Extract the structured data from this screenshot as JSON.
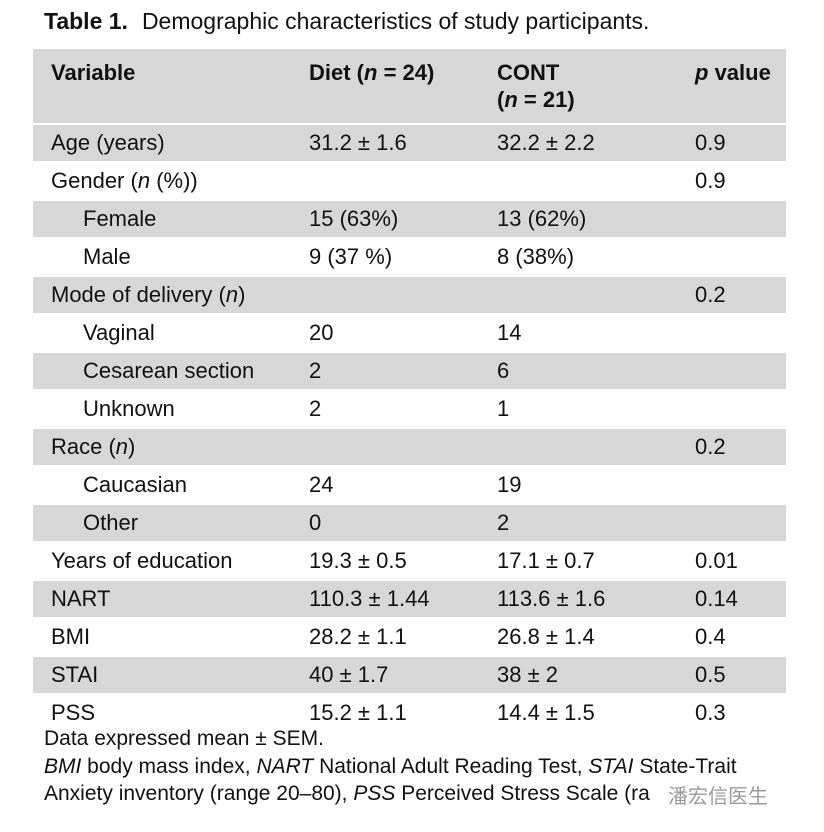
{
  "caption": {
    "label": "Table 1.",
    "title": "Demographic characteristics of study participants."
  },
  "headers": {
    "variable": "Variable",
    "diet": "Diet (n = 24)",
    "cont_line1": "CONT",
    "cont_line2": "(n = 21)",
    "pvalue": "p value"
  },
  "rows": [
    {
      "variable": "Age (years)",
      "diet": "31.2 ± 1.6",
      "cont": "32.2 ± 2.2",
      "p": "0.9"
    },
    {
      "variable": "Gender (n (%))",
      "diet": "",
      "cont": "",
      "p": "0.9"
    },
    {
      "variable": "Female",
      "diet": "15 (63%)",
      "cont": "13 (62%)",
      "p": ""
    },
    {
      "variable": "Male",
      "diet": "9 (37 %)",
      "cont": "8 (38%)",
      "p": ""
    },
    {
      "variable": "Mode of delivery (n)",
      "diet": "",
      "cont": "",
      "p": "0.2"
    },
    {
      "variable": "Vaginal",
      "diet": "20",
      "cont": "14",
      "p": ""
    },
    {
      "variable": "Cesarean section",
      "diet": "2",
      "cont": "6",
      "p": ""
    },
    {
      "variable": "Unknown",
      "diet": "2",
      "cont": "1",
      "p": ""
    },
    {
      "variable": "Race (n)",
      "diet": "",
      "cont": "",
      "p": "0.2"
    },
    {
      "variable": "Caucasian",
      "diet": "24",
      "cont": "19",
      "p": ""
    },
    {
      "variable": "Other",
      "diet": "0",
      "cont": "2",
      "p": ""
    },
    {
      "variable": "Years of education",
      "diet": "19.3 ± 0.5",
      "cont": "17.1 ± 0.7",
      "p": "0.01"
    },
    {
      "variable": "NART",
      "diet": "110.3 ± 1.44",
      "cont": "113.6 ± 1.6",
      "p": "0.14"
    },
    {
      "variable": "BMI",
      "diet": "28.2 ± 1.1",
      "cont": "26.8 ± 1.4",
      "p": "0.4"
    },
    {
      "variable": "STAI",
      "diet": "40 ± 1.7",
      "cont": "38 ± 2",
      "p": "0.5"
    },
    {
      "variable": "PSS",
      "diet": "15.2 ± 1.1",
      "cont": "14.4 ± 1.5",
      "p": "0.3"
    }
  ],
  "footnotes": {
    "line1": "Data expressed mean ± SEM.",
    "bmi_abbr": "BMI",
    "bmi_def": " body mass index, ",
    "nart_abbr": "NART",
    "nart_def": " National Adult Reading Test, ",
    "stai_abbr": "STAI",
    "stai_def": " State-Trait",
    "line3a": "Anxiety inventory (range 20–80), ",
    "pss_abbr": "PSS",
    "pss_def": " Perceived Stress Scale (ra"
  },
  "watermark": "潘宏信医生",
  "colors": {
    "shade": "#d7d7d7",
    "text": "#111111"
  }
}
